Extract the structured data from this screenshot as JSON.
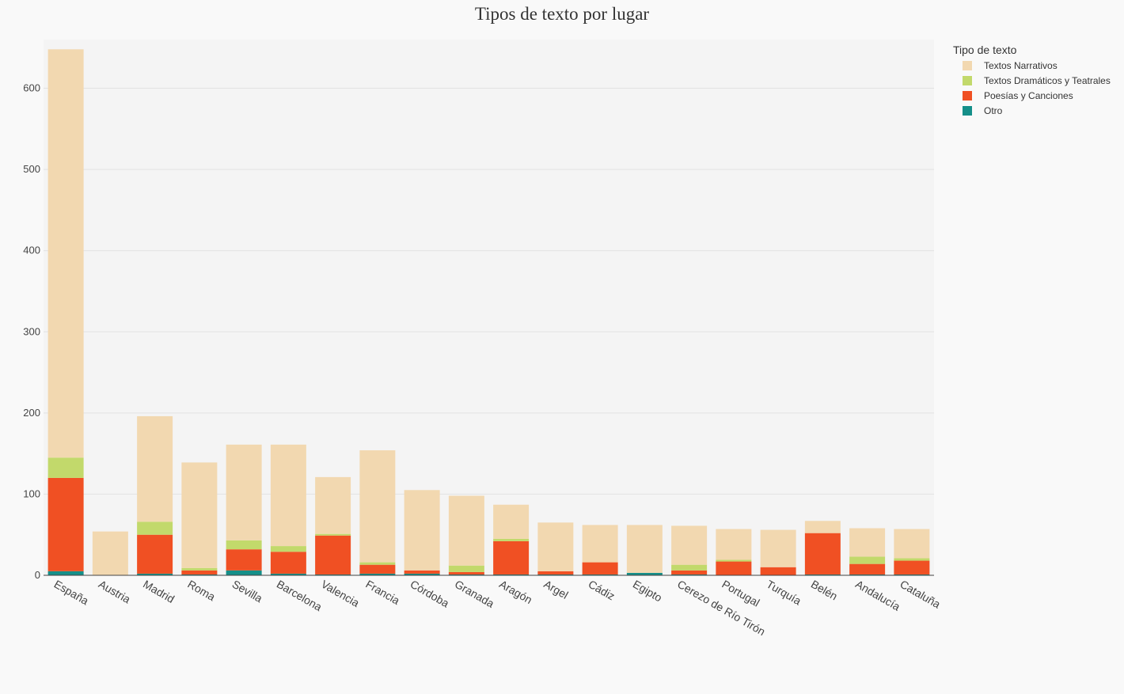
{
  "chart_data": {
    "type": "bar",
    "stacked": true,
    "title": "Tipos de texto por lugar",
    "xlabel": "",
    "ylabel": "",
    "ylim": [
      0,
      660
    ],
    "yticks": [
      0,
      100,
      200,
      300,
      400,
      500,
      600
    ],
    "grid": true,
    "legend": {
      "title": "Tipo de texto",
      "placement": "top-right"
    },
    "categories": [
      "España",
      "Austria",
      "Madrid",
      "Roma",
      "Sevilla",
      "Barcelona",
      "Valencia",
      "Francia",
      "Córdoba",
      "Granada",
      "Aragón",
      "Argel",
      "Cádiz",
      "Egipto",
      "Cerezo de Río Tirón",
      "Portugal",
      "Turquía",
      "Belén",
      "Andalucía",
      "Cataluña"
    ],
    "series": [
      {
        "name": "Otro",
        "color": "#158f89",
        "values": [
          5,
          0,
          2,
          1,
          6,
          2,
          1,
          2,
          2,
          1,
          1,
          1,
          1,
          3,
          1,
          0,
          0,
          1,
          1,
          1
        ]
      },
      {
        "name": "Poesías y Canciones",
        "color": "#f05023",
        "values": [
          115,
          0,
          48,
          5,
          26,
          27,
          48,
          11,
          4,
          3,
          41,
          4,
          15,
          0,
          5,
          17,
          10,
          51,
          13,
          17
        ]
      },
      {
        "name": "Textos Dramáticos y Teatrales",
        "color": "#c2d96b",
        "values": [
          25,
          0,
          16,
          3,
          11,
          7,
          2,
          3,
          0,
          8,
          3,
          0,
          0,
          0,
          7,
          2,
          0,
          0,
          9,
          3
        ]
      },
      {
        "name": "Textos Narrativos",
        "color": "#f2d8b0",
        "values": [
          503,
          54,
          130,
          130,
          118,
          125,
          70,
          138,
          99,
          86,
          42,
          60,
          46,
          59,
          48,
          38,
          46,
          15,
          35,
          36
        ]
      }
    ],
    "legend_order": [
      "Textos Narrativos",
      "Textos Dramáticos y Teatrales",
      "Poesías y Canciones",
      "Otro"
    ]
  }
}
